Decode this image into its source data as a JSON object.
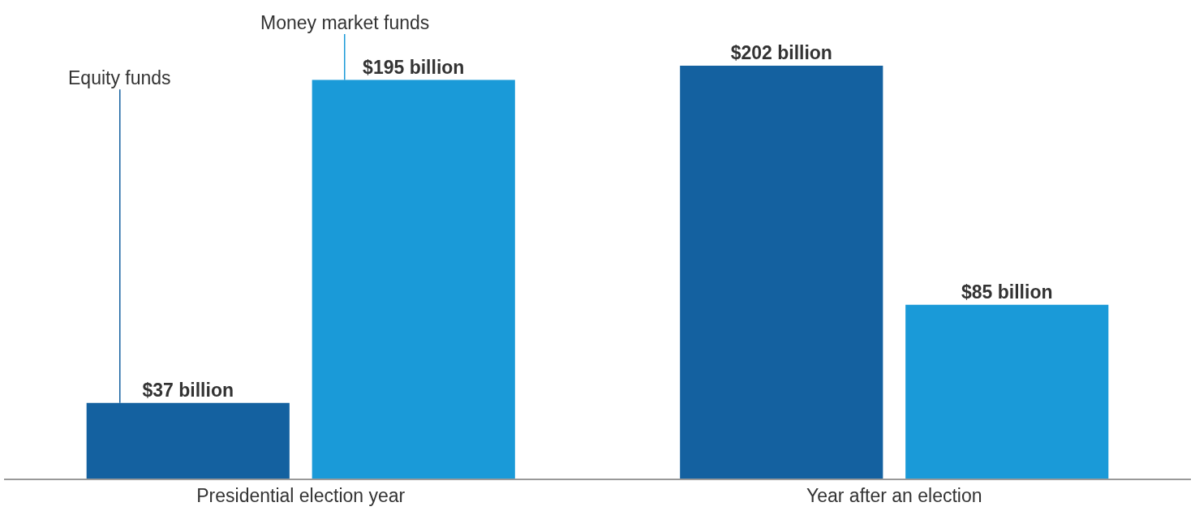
{
  "chart_data": {
    "type": "bar",
    "categories": [
      "Presidential election year",
      "Year after an election"
    ],
    "series": [
      {
        "name": "Equity funds",
        "color": "#1461a0",
        "values": [
          37,
          202
        ],
        "value_labels": [
          "$37 billion",
          "$202 billion"
        ]
      },
      {
        "name": "Money market funds",
        "color": "#1a9ad8",
        "values": [
          195,
          85
        ],
        "value_labels": [
          "$195 billion",
          "$85 billion"
        ]
      }
    ],
    "grid": false,
    "legend": false
  }
}
